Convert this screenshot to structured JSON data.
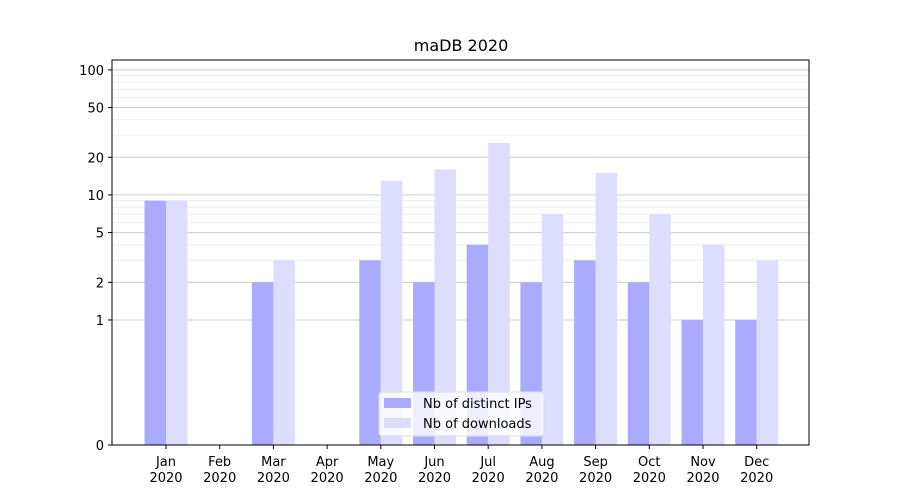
{
  "chart_data": {
    "type": "bar",
    "title": "maDB 2020",
    "categories": [
      "Jan\n2020",
      "Feb\n2020",
      "Mar\n2020",
      "Apr\n2020",
      "May\n2020",
      "Jun\n2020",
      "Jul\n2020",
      "Aug\n2020",
      "Sep\n2020",
      "Oct\n2020",
      "Nov\n2020",
      "Dec\n2020"
    ],
    "series": [
      {
        "name": "Nb of distinct IPs",
        "values": [
          9,
          0,
          2,
          0,
          3,
          2,
          4,
          2,
          3,
          2,
          1,
          1
        ],
        "color": "#aaaaff"
      },
      {
        "name": "Nb of downloads",
        "values": [
          9,
          0,
          3,
          0,
          13,
          16,
          26,
          7,
          15,
          7,
          4,
          3
        ],
        "color": "#ddddff"
      }
    ],
    "y_scale": "symlog",
    "y_ticks": [
      0,
      1,
      2,
      5,
      10,
      20,
      50,
      100
    ],
    "ylim": [
      0,
      120
    ],
    "grid": "y",
    "legend_position": "bottom-center",
    "xlabel": "",
    "ylabel": ""
  }
}
